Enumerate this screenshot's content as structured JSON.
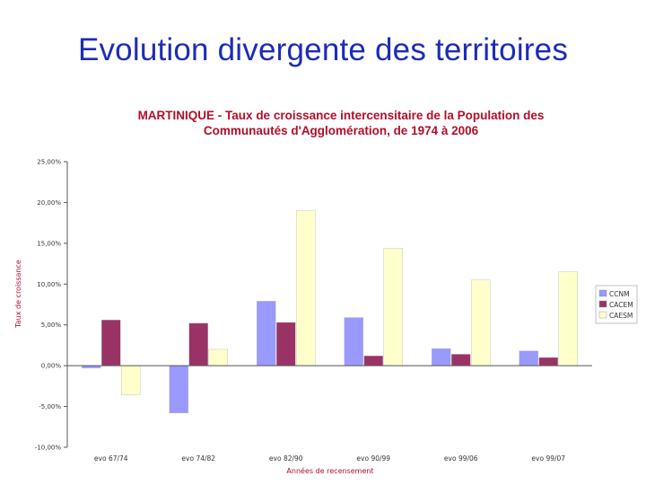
{
  "slide": {
    "title": "Evolution divergente des territoires"
  },
  "chart_data": {
    "type": "bar",
    "title_line1": "MARTINIQUE - Taux de croissance intercensitaire de la Population des",
    "title_line2": "Communautés d'Agglomération, de 1974 à 2006",
    "xlabel": "Années de recensement",
    "ylabel": "Taux de croissance",
    "ylim": [
      -10,
      25
    ],
    "yticks": [
      -10,
      -5,
      0,
      5,
      10,
      15,
      20,
      25
    ],
    "ytick_labels": [
      "-10,00%",
      "-5,00%",
      "0,00%",
      "5,00%",
      "10,00%",
      "15,00%",
      "20,00%",
      "25,00%"
    ],
    "categories": [
      "evo 67/74",
      "evo 74/82",
      "evo 82/90",
      "evo 90/99",
      "evo 99/06",
      "evo 99/07"
    ],
    "series": [
      {
        "name": "CCNM",
        "color": "#9999ff",
        "values": [
          -0.3,
          -5.8,
          7.9,
          5.9,
          2.1,
          1.8
        ]
      },
      {
        "name": "CACEM",
        "color": "#993366",
        "values": [
          5.6,
          5.2,
          5.3,
          1.2,
          1.4,
          1.0
        ]
      },
      {
        "name": "CAESM",
        "color": "#ffffcc",
        "values": [
          -3.6,
          2.0,
          19.0,
          14.4,
          10.5,
          11.5
        ]
      }
    ],
    "legend_position": "right",
    "grid": false
  }
}
